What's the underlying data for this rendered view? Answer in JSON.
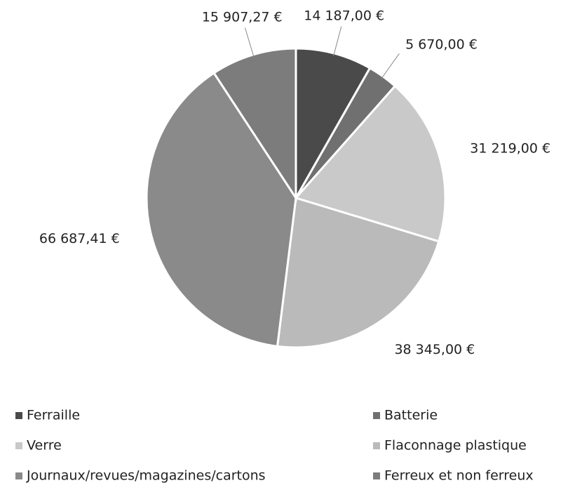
{
  "chart_data": {
    "type": "pie",
    "categories": [
      "Ferraille",
      "Batterie",
      "Verre",
      "Flaconnage plastique",
      "Journaux/revues/magazines/cartons",
      "Ferreux et non ferreux"
    ],
    "values": [
      14187,
      5670,
      31219,
      38345,
      66687.41,
      15907.27
    ],
    "value_labels": [
      "14 187,00 €",
      "5 670,00 €",
      "31 219,00 €",
      "38 345,00 €",
      "66 687,41 €",
      "15 907,27 €"
    ],
    "colors": [
      "#4a4a4a",
      "#707070",
      "#c9c9c9",
      "#bababa",
      "#8a8a8a",
      "#7c7c7c"
    ],
    "legend": "bottom"
  }
}
